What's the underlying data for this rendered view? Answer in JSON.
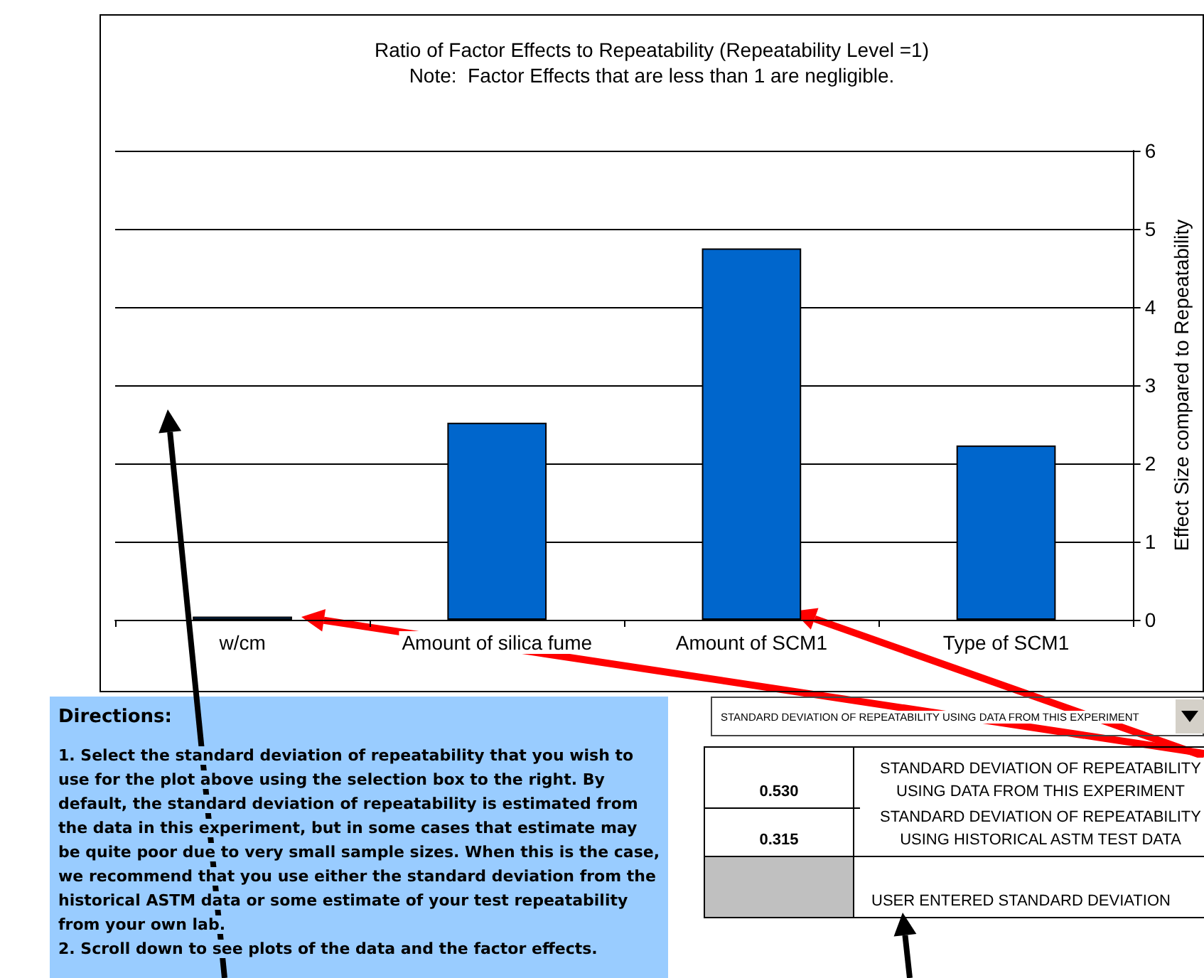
{
  "chart_data": {
    "type": "bar",
    "title": "Ratio of Factor Effects to Repeatability (Repeatability Level =1)",
    "subtitle": "Note:  Factor Effects that are less than 1 are negligible.",
    "ylabel": "Effect Size compared to Repeatability",
    "categories": [
      "w/cm",
      "Amount of silica fume",
      "Amount of SCM1",
      "Type of SCM1"
    ],
    "values": [
      0.04,
      2.52,
      4.75,
      2.23
    ],
    "color": "#0066cc",
    "ylim": [
      0,
      6
    ],
    "yticks": [
      0,
      1,
      2,
      3,
      4,
      5,
      6
    ],
    "grid": "y",
    "annotations": [
      "Directions:",
      "1.  Select the standard deviation of repeatability that you wish to use for the plot above using the selection box to the right.  By default, the standard deviation of repeatability is estimated from the data in this experiment, but in some cases that estimate may be quite poor due to very small sample sizes.  When this is the case, we recommend that you use either the standard deviation from the historical ASTM data or some estimate of your test repeatability from your own lab.",
      "2. Scroll down to see plots of the data and the factor effects.",
      "STANDARD DEVIATION OF REPEATABILITY USING DATA FROM THIS EXPERIMENT",
      "0.530",
      "STANDARD DEVIATION OF REPEATABILITY USING DATA FROM THIS EXPERIMENT",
      "0.315",
      "STANDARD DEVIATION OF REPEATABILITY USING HISTORICAL ASTM TEST DATA",
      "USER ENTERED STANDARD DEVIATION"
    ]
  }
}
